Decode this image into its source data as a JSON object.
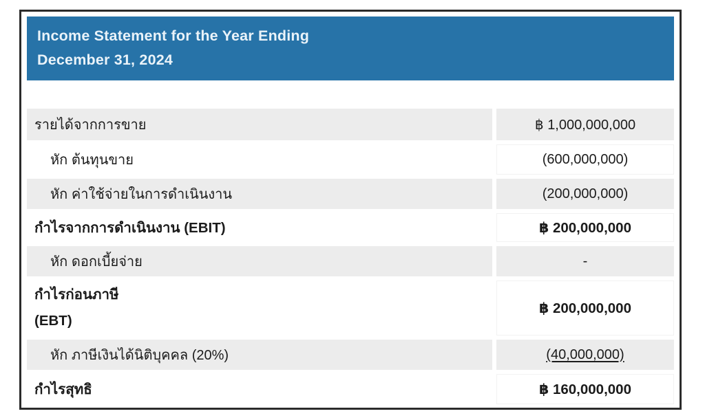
{
  "header": {
    "title_line1": "Income Statement for the Year Ending",
    "title_line2": "December 31, 2024"
  },
  "colors": {
    "header_bg": "#2773a8",
    "header_text": "#eaf3f9",
    "row_gray": "#ececec",
    "frame_border": "#2b2b2b",
    "text": "#1b1b1b"
  },
  "currency_symbol": "฿",
  "table": {
    "rows": [
      {
        "label": "รายได้จากการขาย",
        "value": "฿ 1,000,000,000"
      },
      {
        "label": "หัก ต้นทุนขาย",
        "value": "(600,000,000)"
      },
      {
        "label": "หัก ค่าใช้จ่ายในการดำเนินงาน",
        "value": "(200,000,000)"
      },
      {
        "label": "กำไรจากการดำเนินงาน (EBIT)",
        "value": "฿ 200,000,000"
      },
      {
        "label": "หัก ดอกเบี้ยจ่าย",
        "value": "-"
      },
      {
        "label": "กำไรก่อนภาษี\n(EBT)",
        "value": "฿ 200,000,000"
      },
      {
        "label": "หัก ภาษีเงินได้นิติบุคคล (20%)",
        "value": "(40,000,000)"
      },
      {
        "label": "กำไรสุทธิ",
        "value": "฿ 160,000,000"
      }
    ]
  }
}
